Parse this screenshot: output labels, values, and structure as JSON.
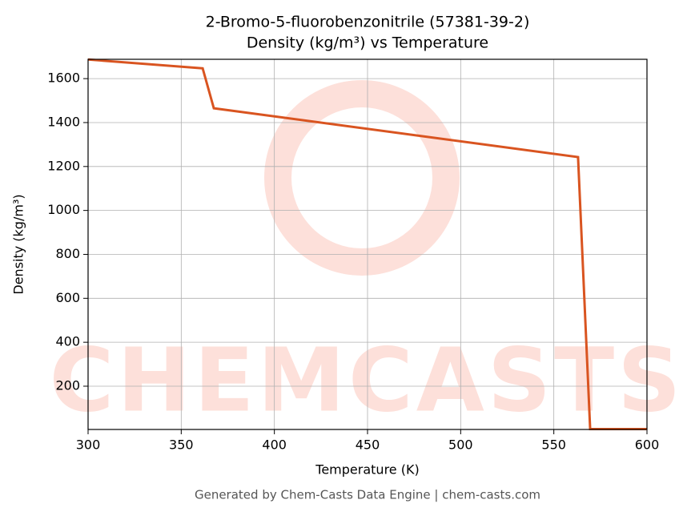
{
  "chart_data": {
    "type": "line",
    "title": "2-Bromo-5-fluorobenzonitrile (57381-39-2)",
    "subtitle": "Density (kg/m³) vs Temperature",
    "x_label": "Temperature (K)",
    "y_label": "Density (kg/m³)",
    "watermark": "CHEMCASTS",
    "footer": "Generated by Chem-Casts Data Engine | chem-casts.com",
    "x": [
      300,
      361.5,
      367.5,
      563,
      569.5,
      600
    ],
    "series": [
      {
        "name": "Density",
        "color": "#d95420",
        "values": [
          1687,
          1647,
          1465,
          1243,
          5,
          5
        ]
      }
    ],
    "xlim": [
      300,
      600
    ],
    "xticks": [
      300,
      350,
      400,
      450,
      500,
      550,
      600
    ],
    "ylim": [
      3,
      1688
    ],
    "yticks": [
      200,
      400,
      600,
      800,
      1000,
      1200,
      1400,
      1600
    ],
    "grid": true
  }
}
